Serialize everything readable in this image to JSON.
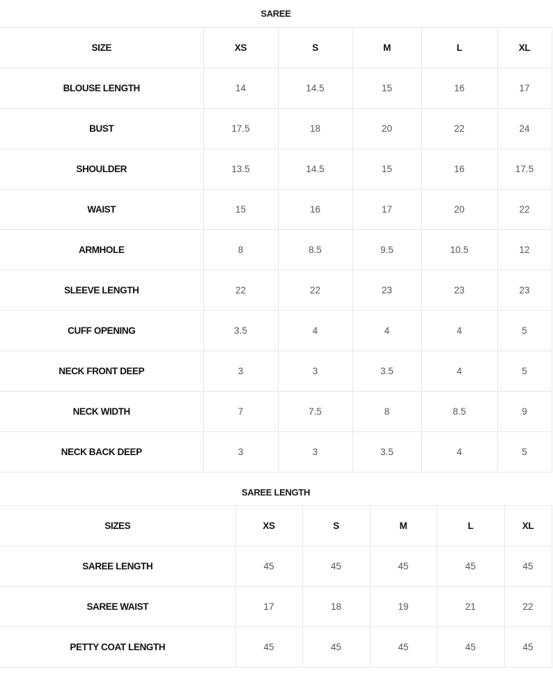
{
  "blouse_table": {
    "title": "SAREE",
    "headers": [
      "SIZE",
      "XS",
      "S",
      "M",
      "L",
      "XL"
    ],
    "rows": [
      {
        "label": "BLOUSE LENGTH",
        "values": [
          "14",
          "14.5",
          "15",
          "16",
          "17"
        ]
      },
      {
        "label": "BUST",
        "values": [
          "17.5",
          "18",
          "20",
          "22",
          "24"
        ]
      },
      {
        "label": "SHOULDER",
        "values": [
          "13.5",
          "14.5",
          "15",
          "16",
          "17.5"
        ]
      },
      {
        "label": "WAIST",
        "values": [
          "15",
          "16",
          "17",
          "20",
          "22"
        ]
      },
      {
        "label": "ARMHOLE",
        "values": [
          "8",
          "8.5",
          "9.5",
          "10.5",
          "12"
        ]
      },
      {
        "label": "SLEEVE LENGTH",
        "values": [
          "22",
          "22",
          "23",
          "23",
          "23"
        ]
      },
      {
        "label": "CUFF OPENING",
        "values": [
          "3.5",
          "4",
          "4",
          "4",
          "5"
        ]
      },
      {
        "label": "NECK FRONT DEEP",
        "values": [
          "3",
          "3",
          "3.5",
          "4",
          "5"
        ]
      },
      {
        "label": "NECK WIDTH",
        "values": [
          "7",
          "7.5",
          "8",
          "8.5",
          "9"
        ]
      },
      {
        "label": "NECK BACK DEEP",
        "values": [
          "3",
          "3",
          "3.5",
          "4",
          "5"
        ]
      }
    ]
  },
  "saree_length_table": {
    "title": "SAREE LENGTH",
    "headers": [
      "SIZES",
      "XS",
      "S",
      "M",
      "L",
      "XL"
    ],
    "rows": [
      {
        "label": "SAREE LENGTH",
        "values": [
          "45",
          "45",
          "45",
          "45",
          "45"
        ]
      },
      {
        "label": "SAREE WAIST",
        "values": [
          "17",
          "18",
          "19",
          "21",
          "22"
        ]
      },
      {
        "label": "PETTY COAT LENGTH",
        "values": [
          "45",
          "45",
          "45",
          "45",
          "45"
        ]
      }
    ]
  }
}
